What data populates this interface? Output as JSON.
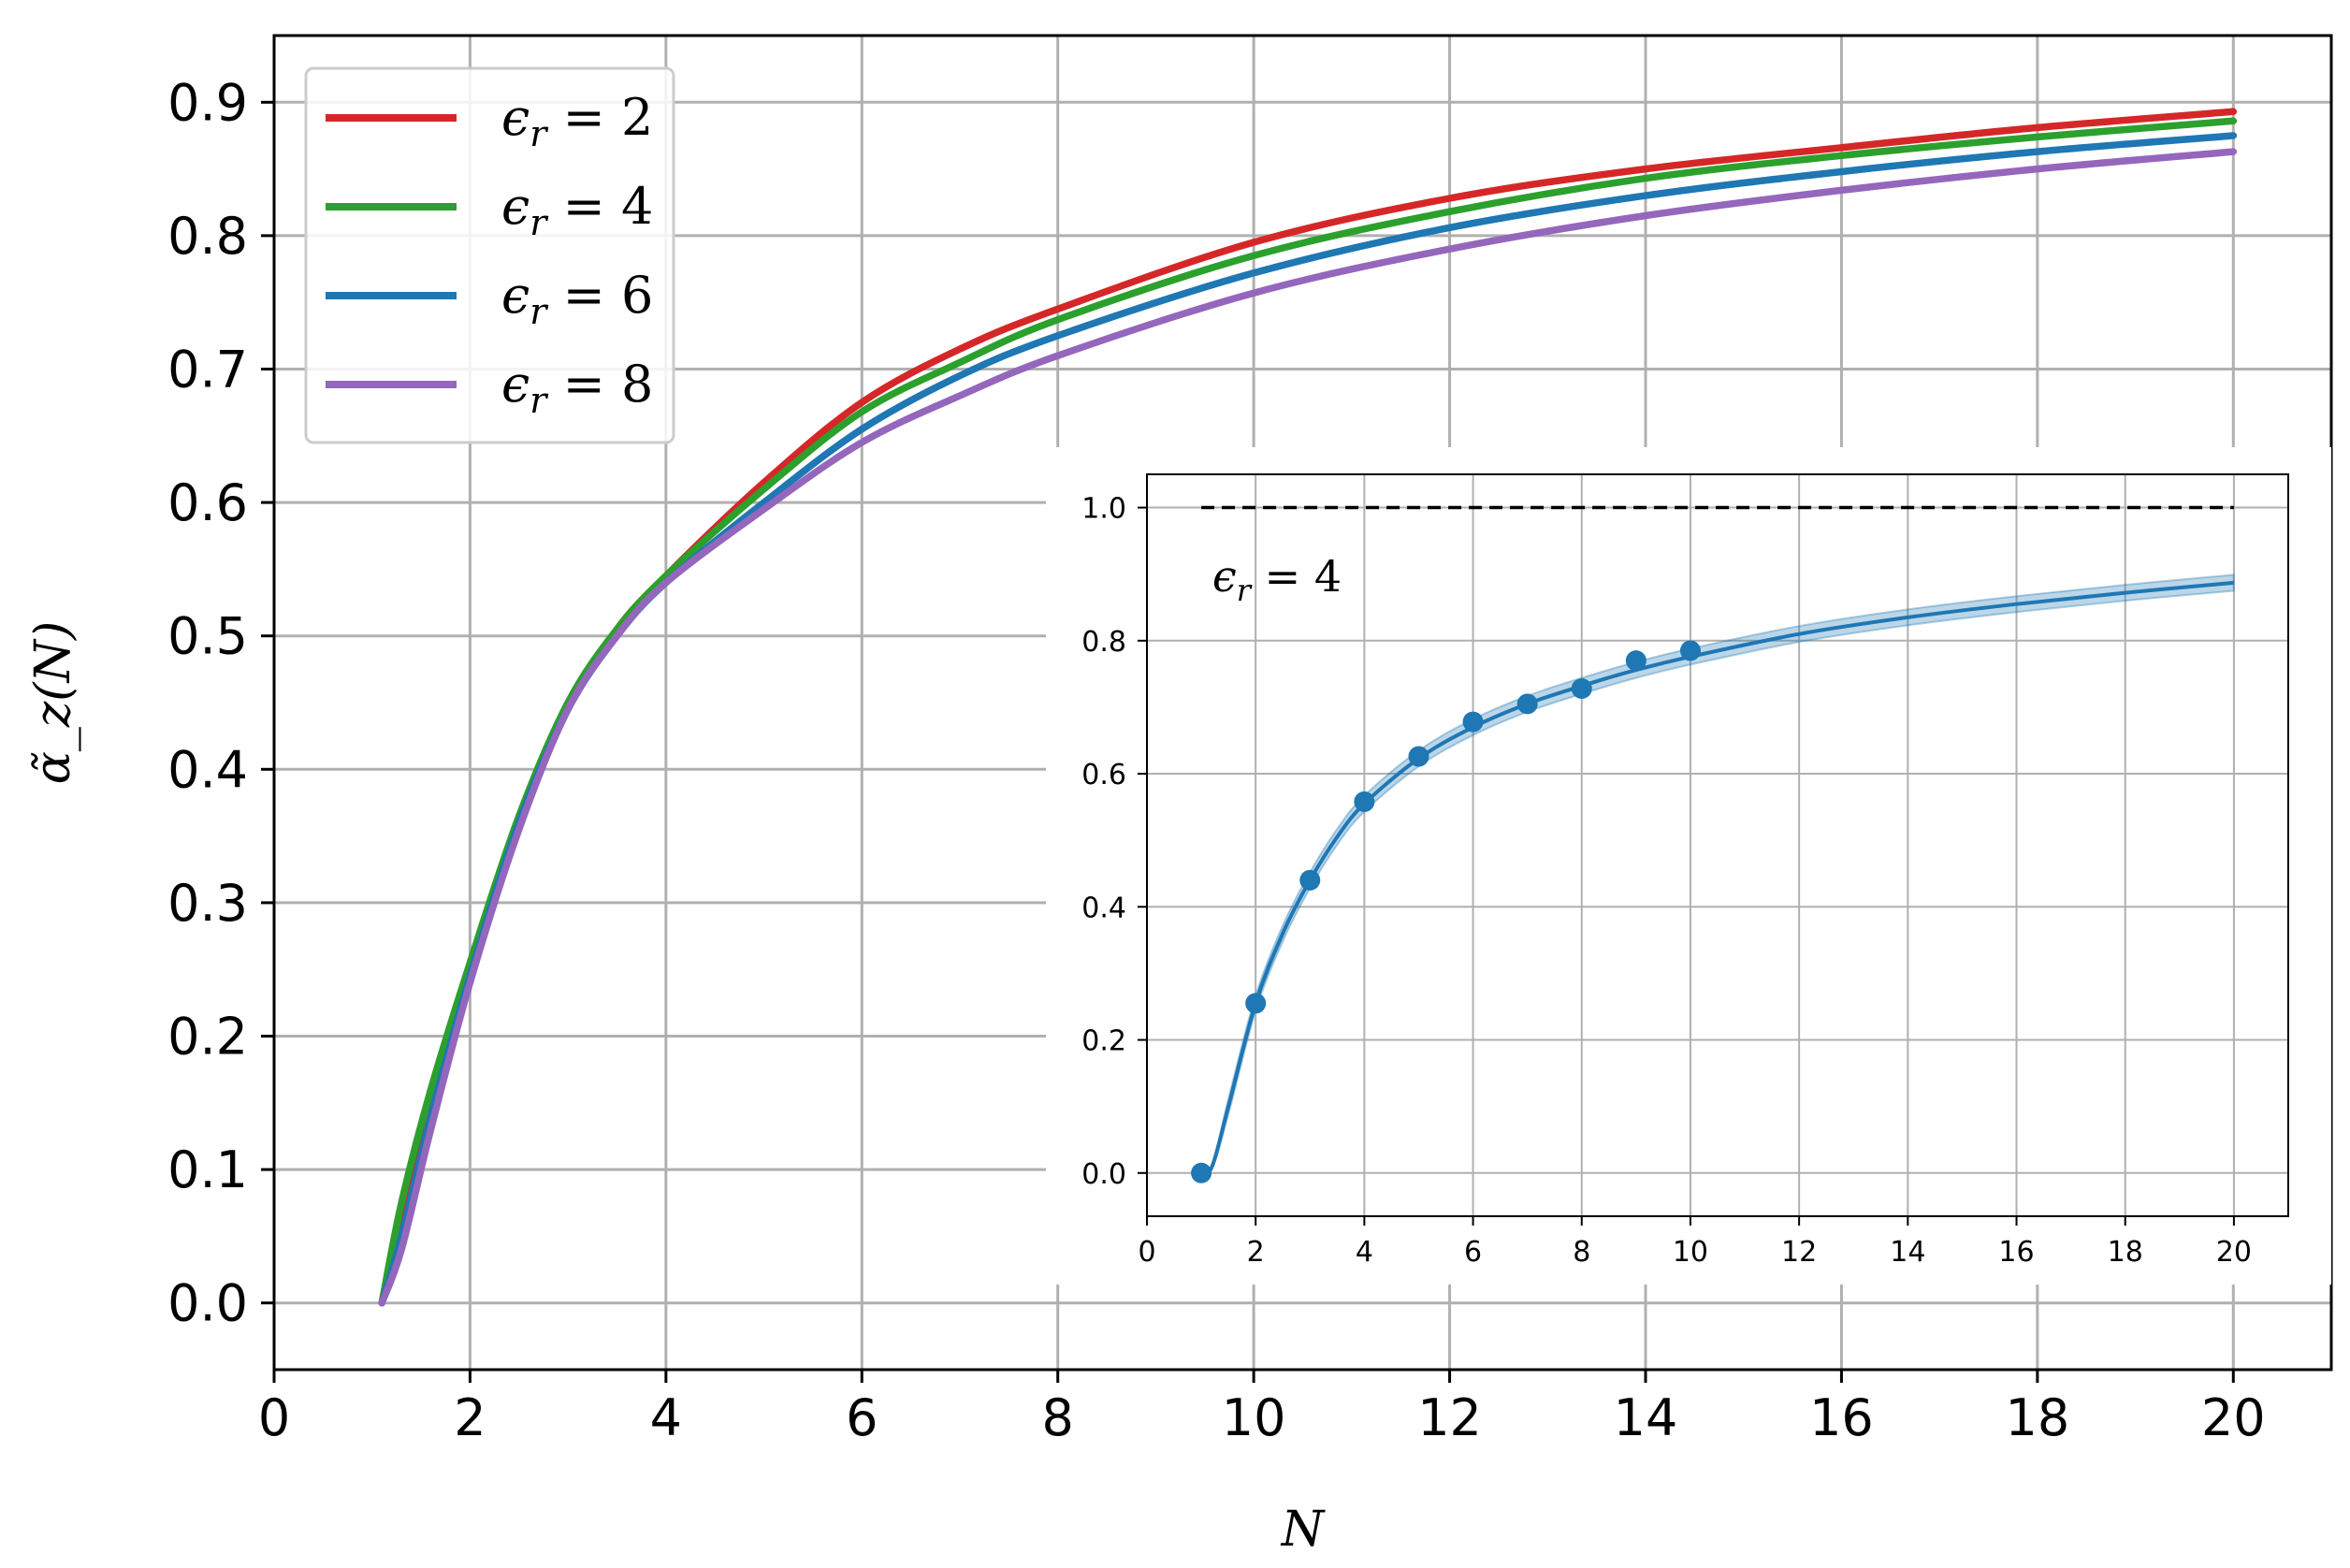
{
  "chart_data": [
    {
      "type": "line",
      "title": "",
      "xlabel": "N",
      "ylabel": "α̃_z(N)",
      "xlim": [
        0,
        21
      ],
      "ylim": [
        -0.05,
        0.95
      ],
      "xticks": [
        "0",
        "2",
        "4",
        "6",
        "8",
        "10",
        "12",
        "14",
        "16",
        "18",
        "20"
      ],
      "yticks": [
        "0.0",
        "0.1",
        "0.2",
        "0.3",
        "0.4",
        "0.5",
        "0.6",
        "0.7",
        "0.8",
        "0.9"
      ],
      "grid": true,
      "legend_position": "upper-left",
      "x": [
        1.1,
        1.3,
        1.6,
        2.0,
        2.5,
        3.0,
        3.5,
        4.0,
        5.0,
        6.0,
        7.0,
        8.0,
        10.0,
        12.0,
        14.0,
        16.0,
        18.0,
        20.0
      ],
      "series": [
        {
          "name": "ϵr = 2",
          "legend_prefix": "ϵ",
          "legend_sub": "r",
          "legend_suffix": " = 2",
          "color": "#d62728",
          "values": [
            0.0,
            0.07,
            0.15,
            0.245,
            0.36,
            0.445,
            0.505,
            0.545,
            0.615,
            0.675,
            0.715,
            0.745,
            0.795,
            0.828,
            0.85,
            0.866,
            0.881,
            0.893
          ]
        },
        {
          "name": "ϵr = 4",
          "legend_prefix": "ϵ",
          "legend_sub": "r",
          "legend_suffix": " = 4",
          "color": "#2ca02c",
          "values": [
            0.0,
            0.075,
            0.16,
            0.255,
            0.365,
            0.45,
            0.505,
            0.545,
            0.61,
            0.668,
            0.705,
            0.737,
            0.785,
            0.818,
            0.843,
            0.86,
            0.874,
            0.886
          ]
        },
        {
          "name": "ϵr = 6",
          "legend_prefix": "ϵ",
          "legend_sub": "r",
          "legend_suffix": " = 6",
          "color": "#1f77b4",
          "values": [
            0.0,
            0.05,
            0.14,
            0.245,
            0.36,
            0.445,
            0.5,
            0.54,
            0.6,
            0.655,
            0.695,
            0.725,
            0.772,
            0.806,
            0.83,
            0.848,
            0.863,
            0.875
          ]
        },
        {
          "name": "ϵr = 8",
          "legend_prefix": "ϵ",
          "legend_sub": "r",
          "legend_suffix": " = 8",
          "color": "#9467bd",
          "values": [
            0.0,
            0.04,
            0.13,
            0.24,
            0.355,
            0.445,
            0.5,
            0.54,
            0.595,
            0.645,
            0.68,
            0.71,
            0.757,
            0.79,
            0.815,
            0.834,
            0.85,
            0.863
          ]
        }
      ]
    },
    {
      "type": "line",
      "title": "",
      "annotation": "ϵr = 4",
      "annotation_prefix": "ϵ",
      "annotation_sub": "r",
      "annotation_suffix": " = 4",
      "xlim": [
        0,
        21
      ],
      "ylim": [
        -0.065,
        1.05
      ],
      "xticks": [
        "0",
        "2",
        "4",
        "6",
        "8",
        "10",
        "12",
        "14",
        "16",
        "18",
        "20"
      ],
      "yticks": [
        "0.0",
        "0.2",
        "0.4",
        "0.6",
        "0.8",
        "1.0"
      ],
      "grid": true,
      "reference_line": {
        "y": 1.0,
        "x_start": 1,
        "x_end": 20,
        "style": "dashed",
        "color": "#000000"
      },
      "fit_color": "#1f77b4",
      "band_color": "#1f77b4",
      "fit": {
        "x": [
          1.0,
          1.2,
          1.5,
          2.0,
          2.5,
          3.0,
          3.5,
          4.0,
          5.0,
          6.0,
          7.0,
          8.0,
          9.0,
          10.0,
          12.0,
          14.0,
          16.0,
          18.0,
          20.0
        ],
        "y": [
          0.0,
          0.01,
          0.1,
          0.255,
          0.36,
          0.44,
          0.505,
          0.555,
          0.623,
          0.67,
          0.705,
          0.732,
          0.756,
          0.776,
          0.81,
          0.835,
          0.855,
          0.872,
          0.887
        ],
        "band": 0.012
      },
      "points": {
        "x": [
          1,
          2,
          3,
          4,
          5,
          6,
          7,
          8,
          9,
          10
        ],
        "y": [
          0.0,
          0.255,
          0.44,
          0.558,
          0.626,
          0.678,
          0.705,
          0.728,
          0.77,
          0.785
        ]
      }
    }
  ]
}
